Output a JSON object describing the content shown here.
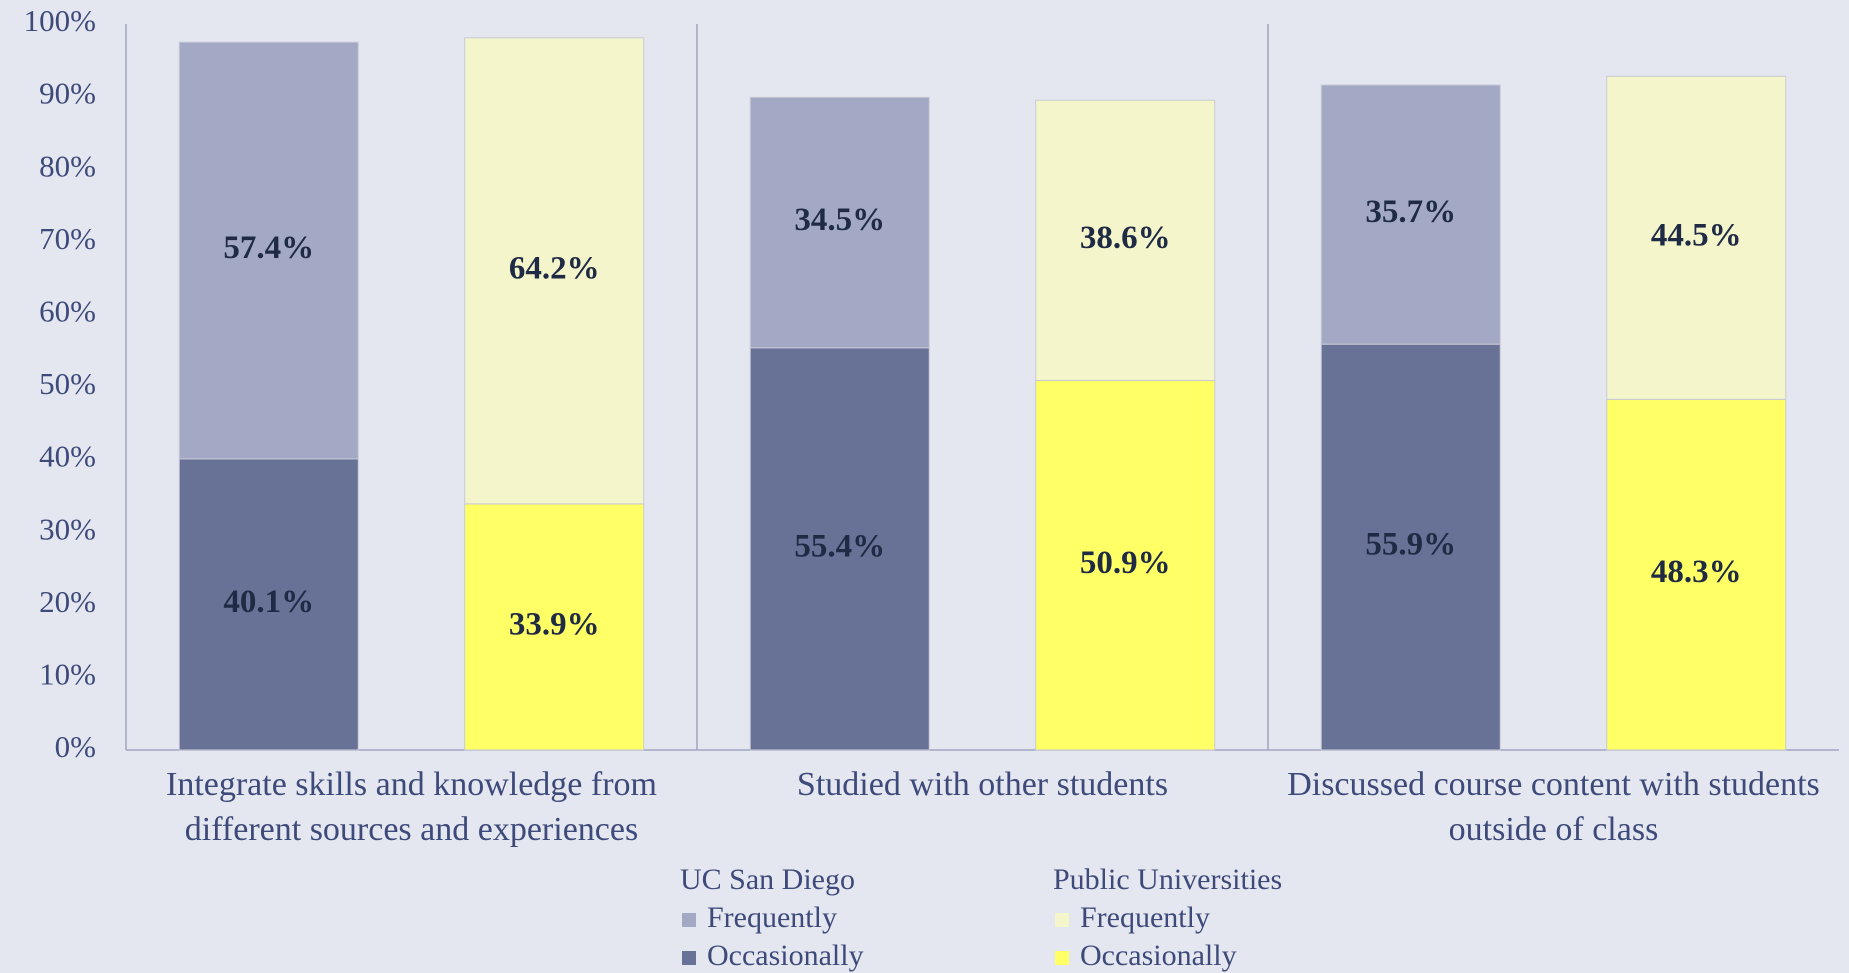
{
  "chart_data": {
    "type": "stacked_bar",
    "categories": [
      "Integrate skills and knowledge from different sources and experiences",
      "Studied with other students",
      "Discussed course content with students outside of class"
    ],
    "groups": [
      {
        "name": "UC San Diego",
        "series": [
          {
            "name": "Frequently",
            "color": "#a3a8c4",
            "values": [
              57.4,
              34.5,
              35.7
            ],
            "value_labels": [
              "57.4%",
              "34.5%",
              "35.7%"
            ]
          },
          {
            "name": "Occasionally",
            "color": "#687196",
            "values": [
              40.1,
              55.4,
              55.9
            ],
            "value_labels": [
              "40.1%",
              "55.4%",
              "55.9%"
            ]
          }
        ]
      },
      {
        "name": "Public Universities",
        "series": [
          {
            "name": "Frequently",
            "color": "#f5f5cc",
            "values": [
              64.2,
              38.6,
              44.5
            ],
            "value_labels": [
              "64.2%",
              "38.6%",
              "44.5%"
            ]
          },
          {
            "name": "Occasionally",
            "color": "#ffff66",
            "values": [
              33.9,
              50.9,
              48.3
            ],
            "value_labels": [
              "33.9%",
              "50.9%",
              "48.3%"
            ]
          }
        ]
      }
    ],
    "ylim": [
      0,
      100
    ],
    "yticks": [
      {
        "value": 0,
        "label": "0%"
      },
      {
        "value": 10,
        "label": "10%"
      },
      {
        "value": 20,
        "label": "20%"
      },
      {
        "value": 30,
        "label": "30%"
      },
      {
        "value": 40,
        "label": "40%"
      },
      {
        "value": 50,
        "label": "50%"
      },
      {
        "value": 60,
        "label": "60%"
      },
      {
        "value": 70,
        "label": "70%"
      },
      {
        "value": 80,
        "label": "80%"
      },
      {
        "value": 90,
        "label": "90%"
      },
      {
        "value": 100,
        "label": "100%"
      }
    ]
  }
}
